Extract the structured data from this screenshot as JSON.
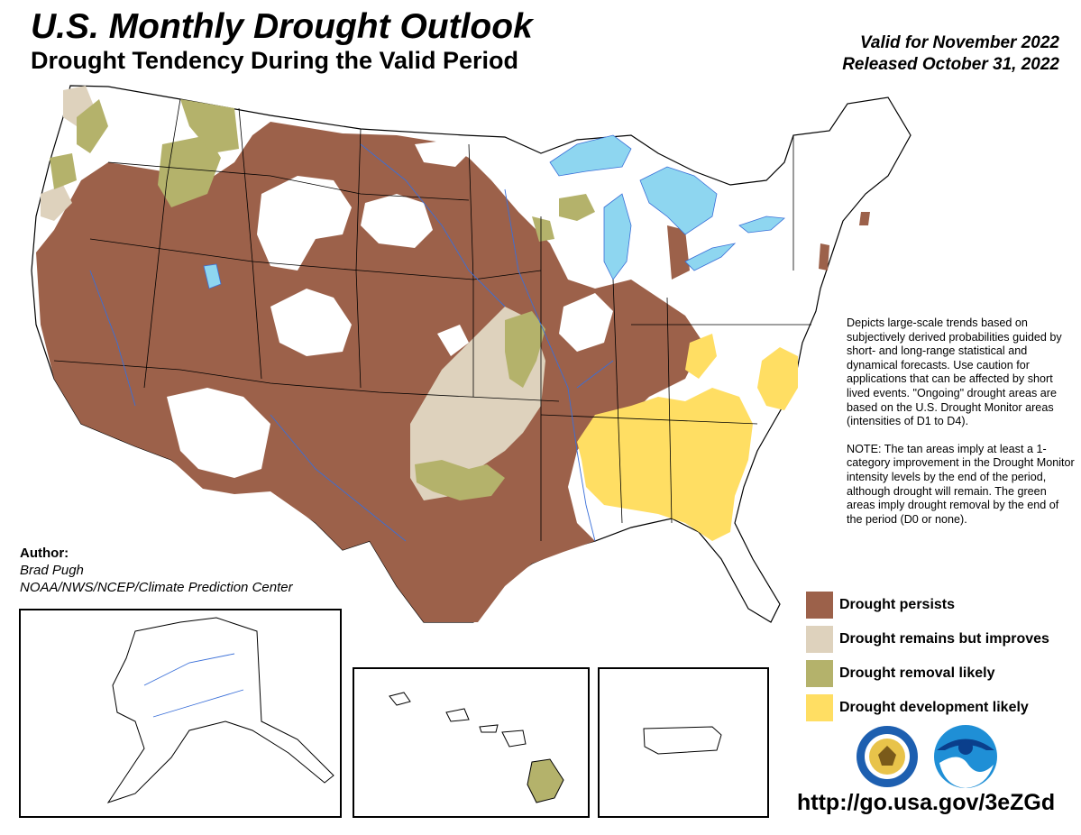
{
  "header": {
    "title": "U.S. Monthly Drought Outlook",
    "subtitle": "Drought Tendency During the Valid Period",
    "valid": "Valid for November 2022",
    "released": "Released October 31, 2022"
  },
  "description": {
    "p1": "Depicts large-scale trends based on subjectively derived probabilities guided by short- and long-range statistical and dynamical forecasts. Use caution for applications that can be affected by short lived events. \"Ongoing\" drought areas are based on the U.S. Drought Monitor areas (intensities of D1 to D4).",
    "p2": "NOTE: The tan areas imply at least a 1-category improvement in the Drought Monitor intensity levels by the end of the period, although drought will remain. The green areas imply drought removal by the end of the period (D0 or none)."
  },
  "legend": [
    {
      "label": "Drought persists",
      "color": "#9c614a"
    },
    {
      "label": "Drought remains but improves",
      "color": "#ded2bd"
    },
    {
      "label": "Drought removal likely",
      "color": "#b4b26b"
    },
    {
      "label": "Drought development likely",
      "color": "#ffde63"
    }
  ],
  "author": {
    "heading": "Author:",
    "name": "Brad Pugh",
    "org": "NOAA/NWS/NCEP/Climate Prediction Center"
  },
  "url": "http://go.usa.gov/3eZGd",
  "colors": {
    "water": "#8ed6f0",
    "border": "#000000",
    "river": "#3a6fd8"
  },
  "logos": [
    "doc-seal-logo",
    "noaa-logo"
  ]
}
